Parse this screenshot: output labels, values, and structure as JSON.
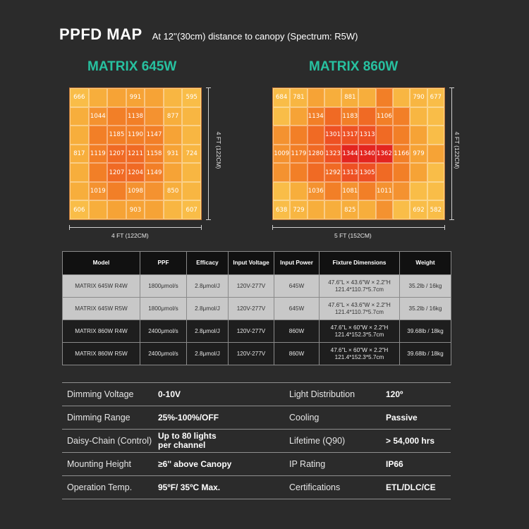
{
  "header": {
    "title": "PPFD MAP",
    "subtitle": "At 12''(30cm) distance to canopy (Spectrum: R5W)"
  },
  "maps": [
    {
      "title": "MATRIX 645W",
      "cols": 7,
      "rows": 7,
      "width_label": "4 FT (122CM)",
      "height_label": "4 FT (122CM)",
      "cells": [
        "666",
        "",
        "",
        "991",
        "",
        "",
        "595",
        "",
        "1044",
        "",
        "1138",
        "",
        "877",
        "",
        "",
        "",
        "1185",
        "1190",
        "1147",
        "",
        "",
        "817",
        "1119",
        "1207",
        "1211",
        "1158",
        "931",
        "724",
        "",
        "",
        "1207",
        "1204",
        "1149",
        "",
        "",
        "",
        "1019",
        "",
        "1098",
        "",
        "850",
        "",
        "606",
        "",
        "",
        "903",
        "",
        "",
        "607"
      ]
    },
    {
      "title": "MATRIX 860W",
      "cols": 10,
      "rows": 7,
      "width_label": "5 FT (152CM)",
      "height_label": "4 FT (122CM)",
      "cells": [
        "684",
        "781",
        "",
        "",
        "881",
        "",
        "",
        "",
        "790",
        "677",
        "",
        "",
        "1134",
        "",
        "1183",
        "",
        "1106",
        "",
        "",
        "",
        "",
        "",
        "",
        "1301",
        "1317",
        "1313",
        "",
        "",
        "",
        "",
        "1009",
        "1179",
        "1280",
        "1323",
        "1344",
        "1340",
        "1362",
        "1166",
        "979",
        "",
        "",
        "",
        "",
        "1292",
        "1313",
        "1305",
        "",
        "",
        "",
        "",
        "",
        "",
        "1036",
        "",
        "1081",
        "",
        "1011",
        "",
        "",
        "",
        "638",
        "729",
        "",
        "",
        "825",
        "",
        "",
        "",
        "692",
        "582"
      ]
    }
  ],
  "spec_table": {
    "headers": [
      "Model",
      "PPF",
      "Efficacy",
      "Input Voltage",
      "Input Power",
      "Fixture Dimensions",
      "Weight"
    ],
    "rows": [
      {
        "shade": "light",
        "cells": [
          "MATRIX 645W R4W",
          "1800μmol/s",
          "2.8μmol/J",
          "120V-277V",
          "645W",
          "47.6\"L × 43.6\"W × 2.2\"H\n121.4*110.7*5.7cm",
          "35.2lb / 16kg"
        ]
      },
      {
        "shade": "light",
        "cells": [
          "MATRIX 645W R5W",
          "1800μmol/s",
          "2.8μmol/J",
          "120V-277V",
          "645W",
          "47.6\"L × 43.6\"W × 2.2\"H\n121.4*110.7*5.7cm",
          "35.2lb / 16kg"
        ]
      },
      {
        "shade": "dark",
        "cells": [
          "MATRIX 860W R4W",
          "2400μmol/s",
          "2.8μmol/J",
          "120V-277V",
          "860W",
          "47.6\"L × 60\"W × 2.2\"H\n121.4*152.3*5.7cm",
          "39.68lb / 18kg"
        ]
      },
      {
        "shade": "dark",
        "cells": [
          "MATRIX 860W R5W",
          "2400μmol/s",
          "2.8μmol/J",
          "120V-277V",
          "860W",
          "47.6\"L × 60\"W × 2.2\"H\n121.4*152.3*5.7cm",
          "39.68lb / 18kg"
        ]
      }
    ]
  },
  "details": [
    {
      "k1": "Dimming Voltage",
      "v1": "0-10V",
      "k2": "Light Distribution",
      "v2": "120º"
    },
    {
      "k1": "Dimming Range",
      "v1": "25%-100%/OFF",
      "k2": "Cooling",
      "v2": "Passive"
    },
    {
      "k1": "Daisy-Chain (Control)",
      "v1": "Up to 80 lights\nper channel",
      "k2": "Lifetime (Q90)",
      "v2": "> 54,000 hrs"
    },
    {
      "k1": "Mounting Height",
      "v1": "≥6'' above Canopy",
      "k2": "IP Rating",
      "v2": "IP66"
    },
    {
      "k1": "Operation Temp.",
      "v1": "95ºF/ 35ºC Max.",
      "k2": "Certifications",
      "v2": "ETL/DLC/CE"
    }
  ]
}
